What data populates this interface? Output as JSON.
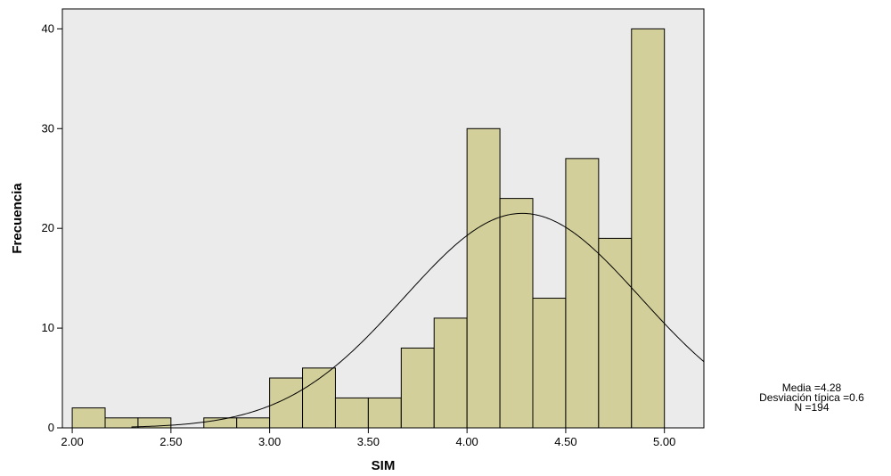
{
  "chart_data": {
    "type": "bar",
    "subtype": "histogram",
    "title": "",
    "xlabel": "SIM",
    "ylabel": "Frecuencia",
    "xlim": [
      1.95,
      5.2
    ],
    "ylim": [
      0,
      42
    ],
    "xticks": [
      2.0,
      2.5,
      3.0,
      3.5,
      4.0,
      4.5,
      5.0
    ],
    "xtick_labels": [
      "2.00",
      "2.50",
      "3.00",
      "3.50",
      "4.00",
      "4.50",
      "5.00"
    ],
    "yticks": [
      0,
      10,
      20,
      30,
      40
    ],
    "ytick_labels": [
      "0",
      "10",
      "20",
      "30",
      "40"
    ],
    "bin_width": 0.1667,
    "bins": [
      {
        "x0": 2.0,
        "x1": 2.1667,
        "count": 2
      },
      {
        "x0": 2.1667,
        "x1": 2.3333,
        "count": 1
      },
      {
        "x0": 2.3333,
        "x1": 2.5,
        "count": 1
      },
      {
        "x0": 2.5,
        "x1": 2.6667,
        "count": 0
      },
      {
        "x0": 2.6667,
        "x1": 2.8333,
        "count": 1
      },
      {
        "x0": 2.8333,
        "x1": 3.0,
        "count": 1
      },
      {
        "x0": 3.0,
        "x1": 3.1667,
        "count": 5
      },
      {
        "x0": 3.1667,
        "x1": 3.3333,
        "count": 6
      },
      {
        "x0": 3.3333,
        "x1": 3.5,
        "count": 3
      },
      {
        "x0": 3.5,
        "x1": 3.6667,
        "count": 3
      },
      {
        "x0": 3.6667,
        "x1": 3.8333,
        "count": 8
      },
      {
        "x0": 3.8333,
        "x1": 4.0,
        "count": 11
      },
      {
        "x0": 4.0,
        "x1": 4.1667,
        "count": 30
      },
      {
        "x0": 4.1667,
        "x1": 4.3333,
        "count": 23
      },
      {
        "x0": 4.3333,
        "x1": 4.5,
        "count": 13
      },
      {
        "x0": 4.5,
        "x1": 4.6667,
        "count": 27
      },
      {
        "x0": 4.6667,
        "x1": 4.8333,
        "count": 19
      },
      {
        "x0": 4.8333,
        "x1": 5.0,
        "count": 40
      }
    ],
    "normal_curve": {
      "mean": 4.28,
      "sd": 0.6,
      "n": 194
    },
    "grid": false,
    "colors": {
      "bar": "#d3cf9a",
      "bar_edge": "#000000",
      "plot_bg": "#ebebeb",
      "curve": "#000000"
    }
  },
  "stats": {
    "line1": "Media =4.28",
    "line2": "Desviación típica =0.6",
    "line3": "N =194"
  }
}
